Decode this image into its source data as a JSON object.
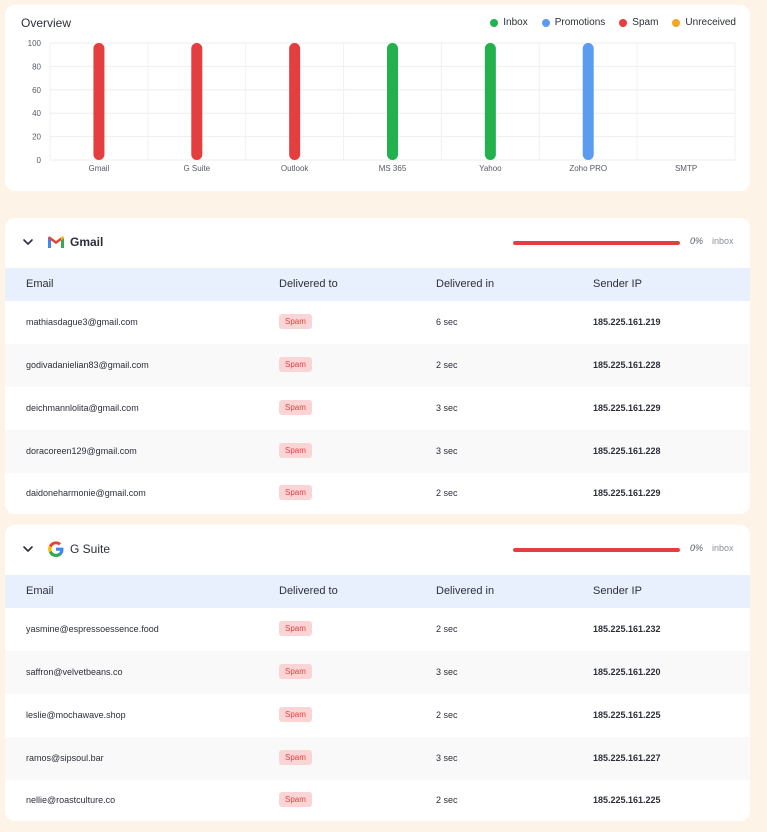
{
  "overview": {
    "title": "Overview",
    "legend": [
      {
        "label": "Inbox",
        "color": "#22b14c"
      },
      {
        "label": "Promotions",
        "color": "#5b9cf0"
      },
      {
        "label": "Spam",
        "color": "#e53e3e"
      },
      {
        "label": "Unreceived",
        "color": "#f5a623"
      }
    ]
  },
  "chart_data": {
    "type": "bar",
    "categories": [
      "Gmail",
      "G Suite",
      "Outlook",
      "MS 365",
      "Yahoo",
      "Zoho PRO",
      "SMTP"
    ],
    "values": [
      100,
      100,
      100,
      100,
      100,
      100,
      0
    ],
    "bar_status": [
      "Spam",
      "Spam",
      "Spam",
      "Inbox",
      "Inbox",
      "Promotions",
      null
    ],
    "ylim": [
      0,
      100
    ],
    "yticks": [
      0,
      20,
      40,
      60,
      80,
      100
    ],
    "grid": true,
    "legend_placement": "top-right"
  },
  "table_headers": {
    "email": "Email",
    "delivered_to": "Delivered to",
    "delivered_in": "Delivered in",
    "sender_ip": "Sender IP"
  },
  "sections": [
    {
      "name": "Gmail",
      "logo": "gmail-icon",
      "progress_pct": "0%",
      "progress_label": "inbox",
      "progress_value": 0,
      "rows": [
        {
          "email": "mathiasdague3@gmail.com",
          "delivered_to": "Spam",
          "delivered_in": "6 sec",
          "sender_ip": "185.225.161.219"
        },
        {
          "email": "godivadanielian83@gmail.com",
          "delivered_to": "Spam",
          "delivered_in": "2 sec",
          "sender_ip": "185.225.161.228"
        },
        {
          "email": "deichmannlolita@gmail.com",
          "delivered_to": "Spam",
          "delivered_in": "3 sec",
          "sender_ip": "185.225.161.229"
        },
        {
          "email": "doracoreen129@gmail.com",
          "delivered_to": "Spam",
          "delivered_in": "3 sec",
          "sender_ip": "185.225.161.228"
        },
        {
          "email": "daidoneharmonie@gmail.com",
          "delivered_to": "Spam",
          "delivered_in": "2 sec",
          "sender_ip": "185.225.161.229"
        }
      ]
    },
    {
      "name": "G Suite",
      "logo": "google-icon",
      "progress_pct": "0%",
      "progress_label": "inbox",
      "progress_value": 0,
      "rows": [
        {
          "email": "yasmine@espressoessence.food",
          "delivered_to": "Spam",
          "delivered_in": "2 sec",
          "sender_ip": "185.225.161.232"
        },
        {
          "email": "saffron@velvetbeans.co",
          "delivered_to": "Spam",
          "delivered_in": "3 sec",
          "sender_ip": "185.225.161.220"
        },
        {
          "email": "leslie@mochawave.shop",
          "delivered_to": "Spam",
          "delivered_in": "2 sec",
          "sender_ip": "185.225.161.225"
        },
        {
          "email": "ramos@sipsoul.bar",
          "delivered_to": "Spam",
          "delivered_in": "3 sec",
          "sender_ip": "185.225.161.227"
        },
        {
          "email": "nellie@roastculture.co",
          "delivered_to": "Spam",
          "delivered_in": "2 sec",
          "sender_ip": "185.225.161.225"
        }
      ]
    }
  ]
}
